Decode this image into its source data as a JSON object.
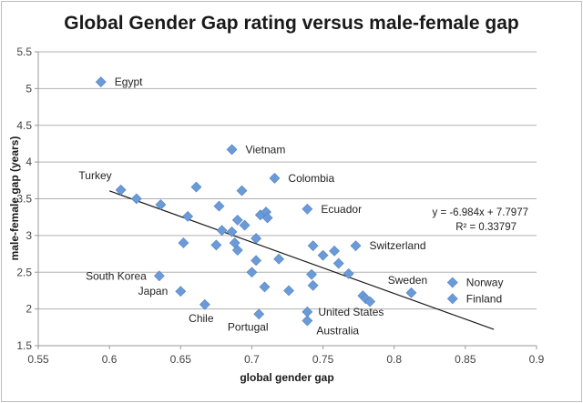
{
  "chart_data": {
    "type": "scatter",
    "title": "Global Gender Gap rating versus male-female gap",
    "xlabel": "global gender gap",
    "ylabel": "male-female gap (years)",
    "xlim": [
      0.55,
      0.9
    ],
    "ylim": [
      1.5,
      5.5
    ],
    "xticks": [
      "0.55",
      "0.6",
      "0.65",
      "0.7",
      "0.75",
      "0.8",
      "0.85",
      "0.9"
    ],
    "yticks": [
      "1.5",
      "2",
      "2.5",
      "3",
      "3.5",
      "4",
      "4.5",
      "5",
      "5.5"
    ],
    "grid": "horizontal",
    "legend": "none",
    "marker_color": "#6a9bd8",
    "trendline": {
      "type": "linear",
      "slope": -6.984,
      "intercept": 7.7977,
      "x_range": [
        0.6,
        0.87
      ],
      "equation_label": "y = -6.984x + 7.7977",
      "r2_label": "R² = 0.33797"
    },
    "points": [
      {
        "x": 0.594,
        "y": 5.09,
        "label": "Egypt"
      },
      {
        "x": 0.686,
        "y": 4.17,
        "label": "Vietnam"
      },
      {
        "x": 0.716,
        "y": 3.78,
        "label": "Colombia"
      },
      {
        "x": 0.739,
        "y": 3.36,
        "label": "Ecuador"
      },
      {
        "x": 0.608,
        "y": 3.62,
        "label": "Turkey"
      },
      {
        "x": 0.619,
        "y": 3.5,
        "label": ""
      },
      {
        "x": 0.636,
        "y": 3.42,
        "label": ""
      },
      {
        "x": 0.661,
        "y": 3.66,
        "label": ""
      },
      {
        "x": 0.655,
        "y": 3.26,
        "label": ""
      },
      {
        "x": 0.677,
        "y": 3.4,
        "label": ""
      },
      {
        "x": 0.693,
        "y": 3.61,
        "label": ""
      },
      {
        "x": 0.679,
        "y": 3.07,
        "label": ""
      },
      {
        "x": 0.69,
        "y": 3.21,
        "label": ""
      },
      {
        "x": 0.695,
        "y": 3.14,
        "label": ""
      },
      {
        "x": 0.686,
        "y": 3.05,
        "label": ""
      },
      {
        "x": 0.706,
        "y": 3.28,
        "label": ""
      },
      {
        "x": 0.71,
        "y": 3.32,
        "label": ""
      },
      {
        "x": 0.711,
        "y": 3.24,
        "label": ""
      },
      {
        "x": 0.703,
        "y": 2.96,
        "label": ""
      },
      {
        "x": 0.652,
        "y": 2.9,
        "label": ""
      },
      {
        "x": 0.675,
        "y": 2.87,
        "label": ""
      },
      {
        "x": 0.688,
        "y": 2.9,
        "label": ""
      },
      {
        "x": 0.69,
        "y": 2.8,
        "label": ""
      },
      {
        "x": 0.703,
        "y": 2.66,
        "label": ""
      },
      {
        "x": 0.719,
        "y": 2.68,
        "label": ""
      },
      {
        "x": 0.7,
        "y": 2.5,
        "label": ""
      },
      {
        "x": 0.709,
        "y": 2.3,
        "label": ""
      },
      {
        "x": 0.726,
        "y": 2.25,
        "label": ""
      },
      {
        "x": 0.743,
        "y": 2.86,
        "label": ""
      },
      {
        "x": 0.75,
        "y": 2.73,
        "label": ""
      },
      {
        "x": 0.758,
        "y": 2.79,
        "label": ""
      },
      {
        "x": 0.761,
        "y": 2.62,
        "label": ""
      },
      {
        "x": 0.768,
        "y": 2.48,
        "label": ""
      },
      {
        "x": 0.773,
        "y": 2.86,
        "label": "Switzerland"
      },
      {
        "x": 0.742,
        "y": 2.47,
        "label": ""
      },
      {
        "x": 0.743,
        "y": 2.32,
        "label": ""
      },
      {
        "x": 0.739,
        "y": 1.96,
        "label": "United States"
      },
      {
        "x": 0.739,
        "y": 1.84,
        "label": "Australia"
      },
      {
        "x": 0.705,
        "y": 1.93,
        "label": "Portugal"
      },
      {
        "x": 0.667,
        "y": 2.06,
        "label": "Chile"
      },
      {
        "x": 0.65,
        "y": 2.24,
        "label": "Japan"
      },
      {
        "x": 0.635,
        "y": 2.45,
        "label": "South Korea"
      },
      {
        "x": 0.778,
        "y": 2.18,
        "label": ""
      },
      {
        "x": 0.78,
        "y": 2.14,
        "label": ""
      },
      {
        "x": 0.783,
        "y": 2.1,
        "label": ""
      },
      {
        "x": 0.812,
        "y": 2.22,
        "label": "Sweden"
      },
      {
        "x": 0.841,
        "y": 2.36,
        "label": "Norway"
      },
      {
        "x": 0.841,
        "y": 2.14,
        "label": "Finland"
      }
    ]
  }
}
